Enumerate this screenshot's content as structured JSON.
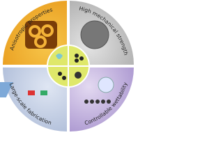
{
  "quadrants": [
    {
      "label": "Anisotropic properties"
    },
    {
      "label": "High mechanical strength"
    },
    {
      "label": "Large-scale fabrication"
    },
    {
      "label": "Controllable wettability"
    }
  ]
}
